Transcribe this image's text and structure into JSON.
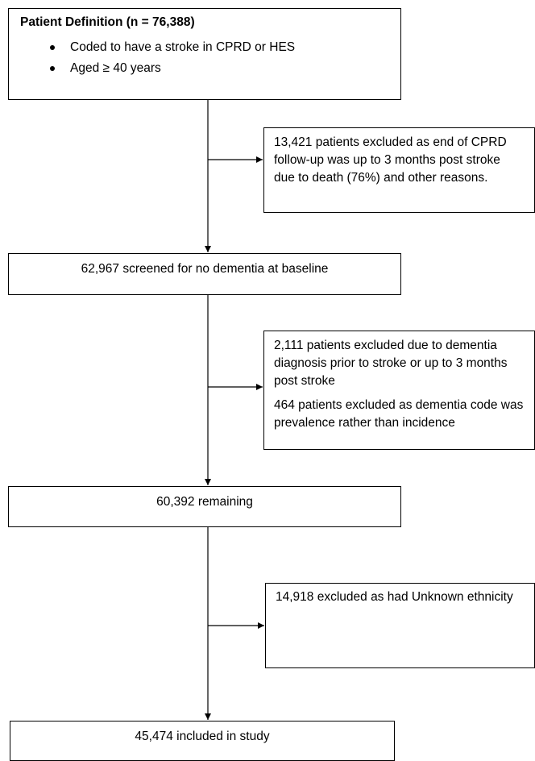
{
  "patient_definition": {
    "title": "Patient Definition (n = 76,388)",
    "criteria": [
      "Coded to have a stroke in CPRD or HES",
      "Aged ≥ 40 years"
    ]
  },
  "exclusion_1": {
    "text": "13,421 patients excluded as end of CPRD follow-up was up to 3 months post stroke due to death (76%) and other reasons."
  },
  "screened": {
    "text": "62,967 screened for no dementia at baseline"
  },
  "exclusion_2": {
    "text_1": "2,111 patients excluded due to dementia diagnosis prior to stroke or up to 3 months post stroke",
    "text_2": "464 patients excluded as dementia code was prevalence rather than incidence"
  },
  "remaining": {
    "text": "60,392 remaining"
  },
  "exclusion_3": {
    "text": "14,918 excluded as had Unknown ethnicity"
  },
  "included": {
    "text": "45,474 included in study"
  }
}
